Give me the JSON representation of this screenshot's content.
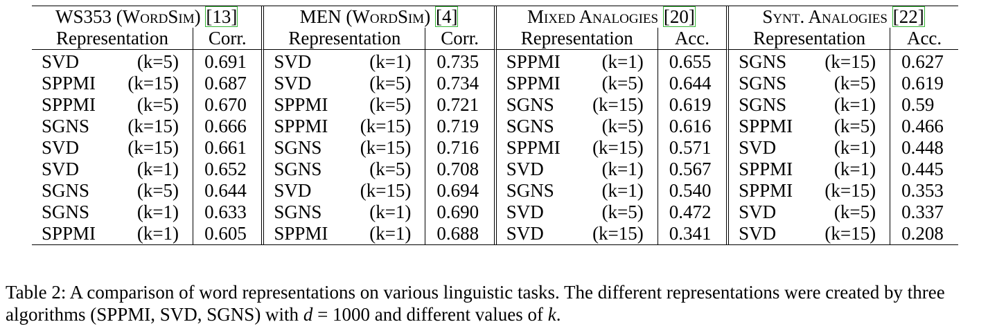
{
  "table": {
    "groups": [
      {
        "title": "WS353 (WordSim)",
        "cite": "[13]",
        "rep_header": "Representation",
        "metric": "Corr.",
        "rows": [
          {
            "algo": "SVD",
            "k": "(k=5)",
            "value": "0.691"
          },
          {
            "algo": "SPPMI",
            "k": "(k=15)",
            "value": "0.687"
          },
          {
            "algo": "SPPMI",
            "k": "(k=5)",
            "value": "0.670"
          },
          {
            "algo": "SGNS",
            "k": "(k=15)",
            "value": "0.666"
          },
          {
            "algo": "SVD",
            "k": "(k=15)",
            "value": "0.661"
          },
          {
            "algo": "SVD",
            "k": "(k=1)",
            "value": "0.652"
          },
          {
            "algo": "SGNS",
            "k": "(k=5)",
            "value": "0.644"
          },
          {
            "algo": "SGNS",
            "k": "(k=1)",
            "value": "0.633"
          },
          {
            "algo": "SPPMI",
            "k": "(k=1)",
            "value": "0.605"
          }
        ]
      },
      {
        "title": "MEN (WordSim)",
        "cite": "[4]",
        "rep_header": "Representation",
        "metric": "Corr.",
        "rows": [
          {
            "algo": "SVD",
            "k": "(k=1)",
            "value": "0.735"
          },
          {
            "algo": "SVD",
            "k": "(k=5)",
            "value": "0.734"
          },
          {
            "algo": "SPPMI",
            "k": "(k=5)",
            "value": "0.721"
          },
          {
            "algo": "SPPMI",
            "k": "(k=15)",
            "value": "0.719"
          },
          {
            "algo": "SGNS",
            "k": "(k=15)",
            "value": "0.716"
          },
          {
            "algo": "SGNS",
            "k": "(k=5)",
            "value": "0.708"
          },
          {
            "algo": "SVD",
            "k": "(k=15)",
            "value": "0.694"
          },
          {
            "algo": "SGNS",
            "k": "(k=1)",
            "value": "0.690"
          },
          {
            "algo": "SPPMI",
            "k": "(k=1)",
            "value": "0.688"
          }
        ]
      },
      {
        "title": "Mixed Analogies",
        "cite": "[20]",
        "rep_header": "Representation",
        "metric": "Acc.",
        "rows": [
          {
            "algo": "SPPMI",
            "k": "(k=1)",
            "value": "0.655"
          },
          {
            "algo": "SPPMI",
            "k": "(k=5)",
            "value": "0.644"
          },
          {
            "algo": "SGNS",
            "k": "(k=15)",
            "value": "0.619"
          },
          {
            "algo": "SGNS",
            "k": "(k=5)",
            "value": "0.616"
          },
          {
            "algo": "SPPMI",
            "k": "(k=15)",
            "value": "0.571"
          },
          {
            "algo": "SVD",
            "k": "(k=1)",
            "value": "0.567"
          },
          {
            "algo": "SGNS",
            "k": "(k=1)",
            "value": "0.540"
          },
          {
            "algo": "SVD",
            "k": "(k=5)",
            "value": "0.472"
          },
          {
            "algo": "SVD",
            "k": "(k=15)",
            "value": "0.341"
          }
        ]
      },
      {
        "title": "Synt. Analogies",
        "cite": "[22]",
        "rep_header": "Representation",
        "metric": "Acc.",
        "rows": [
          {
            "algo": "SGNS",
            "k": "(k=15)",
            "value": "0.627"
          },
          {
            "algo": "SGNS",
            "k": "(k=5)",
            "value": "0.619"
          },
          {
            "algo": "SGNS",
            "k": "(k=1)",
            "value": "0.59"
          },
          {
            "algo": "SPPMI",
            "k": "(k=5)",
            "value": "0.466"
          },
          {
            "algo": "SVD",
            "k": "(k=1)",
            "value": "0.448"
          },
          {
            "algo": "SPPMI",
            "k": "(k=1)",
            "value": "0.445"
          },
          {
            "algo": "SPPMI",
            "k": "(k=15)",
            "value": "0.353"
          },
          {
            "algo": "SVD",
            "k": "(k=5)",
            "value": "0.337"
          },
          {
            "algo": "SVD",
            "k": "(k=15)",
            "value": "0.208"
          }
        ]
      }
    ]
  },
  "caption": {
    "text_before": "Table 2: A comparison of word representations on various linguistic tasks. The different representations were created by three algorithms (SPPMI, SVD, SGNS) with ",
    "math_d": "d",
    "math_eq": " = 1000",
    "text_middle": " and different values of ",
    "math_k": "k",
    "text_after": "."
  },
  "colors": {
    "citation_box": "#36b536"
  }
}
